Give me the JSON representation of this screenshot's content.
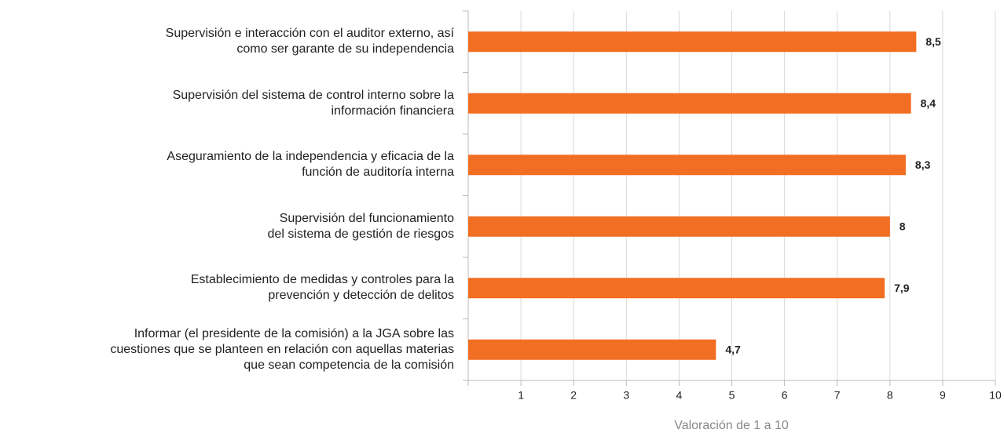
{
  "chart_data": {
    "type": "hbar",
    "categories": [
      "Supervisión e interacción con el auditor externo, así\ncomo ser garante de su independencia",
      "Supervisión del sistema de control interno sobre la\ninformación financiera",
      "Aseguramiento de la independencia y eficacia de la\nfunción de auditoría interna",
      "Supervisión del funcionamiento\ndel sistema de gestión de riesgos",
      "Establecimiento de medidas y controles para la\nprevención y detección de delitos",
      "Informar (el presidente de la comisión) a la JGA sobre las\ncuestiones que se planteen en relación con aquellas materias\nque sean competencia de la comisión"
    ],
    "values": [
      8.5,
      8.4,
      8.3,
      8,
      7.9,
      4.7
    ],
    "value_labels": [
      "8,5",
      "8,4",
      "8,3",
      "8",
      "7,9",
      "4,7"
    ],
    "color": "#f26e22",
    "xlabel": "Valoración de 1 a 10",
    "xlim": [
      0,
      10
    ],
    "xticks": [
      1,
      2,
      3,
      4,
      5,
      6,
      7,
      8,
      9,
      10
    ],
    "grid": true
  }
}
